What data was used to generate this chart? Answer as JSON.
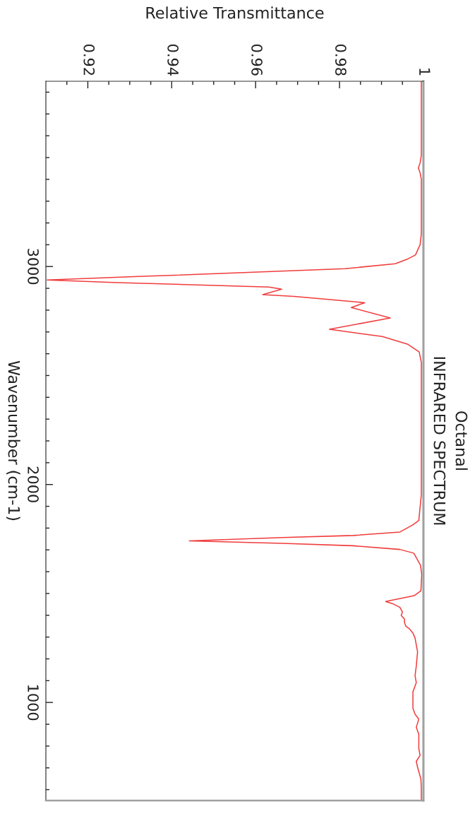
{
  "chart_data": {
    "type": "line",
    "title": "Octanal",
    "subtitle": "INFRARED SPECTRUM",
    "xlabel": "Relative Transmittance",
    "ylabel": "Wavenumber (cm-1)",
    "color": "#f03c3c",
    "x": [
      0.9995,
      0.9995,
      0.9995,
      0.9992,
      0.9988,
      0.9992,
      0.9995,
      0.9995,
      0.9992,
      0.9981,
      0.9963,
      0.9933,
      0.9813,
      0.9572,
      0.9332,
      0.9103,
      0.9272,
      0.9632,
      0.9662,
      0.9617,
      0.9692,
      0.986,
      0.9828,
      0.9921,
      0.9776,
      0.9902,
      0.9963,
      0.999,
      0.9995,
      0.9995,
      0.9989,
      0.9974,
      0.9944,
      0.9832,
      0.9664,
      0.9442,
      0.9664,
      0.9832,
      0.9944,
      0.9977,
      0.9993,
      0.9996,
      0.9994,
      0.9978,
      0.991,
      0.9927,
      0.9944,
      0.995,
      0.9947,
      0.9955,
      0.9955,
      0.9958,
      0.9966,
      0.9975,
      0.998,
      0.9986,
      0.9983,
      0.998,
      0.9983,
      0.9975,
      0.9975,
      0.998,
      0.9989,
      0.9983,
      0.9989,
      0.9989,
      0.9992,
      0.9983,
      0.9986,
      0.9994,
      0.9995,
      0.9995
    ],
    "values": [
      3850,
      3600,
      3510,
      3475,
      3452,
      3430,
      3400,
      3150,
      3100,
      3053,
      3035,
      3013,
      2990,
      2972,
      2955,
      2938,
      2926,
      2906,
      2896,
      2871,
      2863,
      2834,
      2812,
      2764,
      2712,
      2679,
      2643,
      2608,
      2560,
      1954,
      1835,
      1814,
      1782,
      1766,
      1757,
      1741,
      1730,
      1719,
      1702,
      1685,
      1630,
      1588,
      1512,
      1490,
      1463,
      1453,
      1436,
      1415,
      1399,
      1382,
      1366,
      1350,
      1339,
      1318,
      1296,
      1232,
      1167,
      1123,
      1091,
      1048,
      973,
      946,
      924,
      886,
      854,
      789,
      757,
      730,
      703,
      649,
      606,
      550
    ],
    "xlim": [
      0.91,
      1
    ],
    "xticks": [
      {
        "value": 0.915,
        "label": null
      },
      0.92,
      {
        "value": 0.925,
        "label": null
      },
      {
        "value": 0.93,
        "label": null
      },
      {
        "value": 0.935,
        "label": null
      },
      0.94,
      {
        "value": 0.945,
        "label": null
      },
      {
        "value": 0.95,
        "label": null
      },
      {
        "value": 0.955,
        "label": null
      },
      0.96,
      {
        "value": 0.965,
        "label": null
      },
      {
        "value": 0.97,
        "label": null
      },
      {
        "value": 0.975,
        "label": null
      },
      0.98,
      {
        "value": 0.985,
        "label": null
      },
      {
        "value": 0.99,
        "label": null
      },
      {
        "value": 0.995,
        "label": null
      },
      1
    ],
    "ylim": [
      550,
      3850
    ],
    "yticks": [
      {
        "value": 600,
        "label": null
      },
      {
        "value": 700,
        "label": null
      },
      {
        "value": 800,
        "label": null
      },
      {
        "value": 900,
        "label": null
      },
      1000,
      {
        "value": 1100,
        "label": null
      },
      {
        "value": 1200,
        "label": null
      },
      {
        "value": 1300,
        "label": null
      },
      {
        "value": 1400,
        "label": null
      },
      {
        "value": 1500,
        "label": null
      },
      {
        "value": 1600,
        "label": null
      },
      {
        "value": 1700,
        "label": null
      },
      {
        "value": 1800,
        "label": null
      },
      {
        "value": 1900,
        "label": null
      },
      2000,
      {
        "value": 2100,
        "label": null
      },
      {
        "value": 2200,
        "label": null
      },
      {
        "value": 2300,
        "label": null
      },
      {
        "value": 2400,
        "label": null
      },
      {
        "value": 2500,
        "label": null
      },
      {
        "value": 2600,
        "label": null
      },
      {
        "value": 2700,
        "label": null
      },
      {
        "value": 2800,
        "label": null
      },
      {
        "value": 2900,
        "label": null
      },
      3000,
      {
        "value": 3100,
        "label": null
      },
      {
        "value": 3200,
        "label": null
      },
      {
        "value": 3300,
        "label": null
      },
      {
        "value": 3400,
        "label": null
      },
      {
        "value": 3500,
        "label": null
      },
      {
        "value": 3600,
        "label": null
      },
      {
        "value": 3700,
        "label": null
      },
      {
        "value": 3800,
        "label": null
      }
    ]
  }
}
